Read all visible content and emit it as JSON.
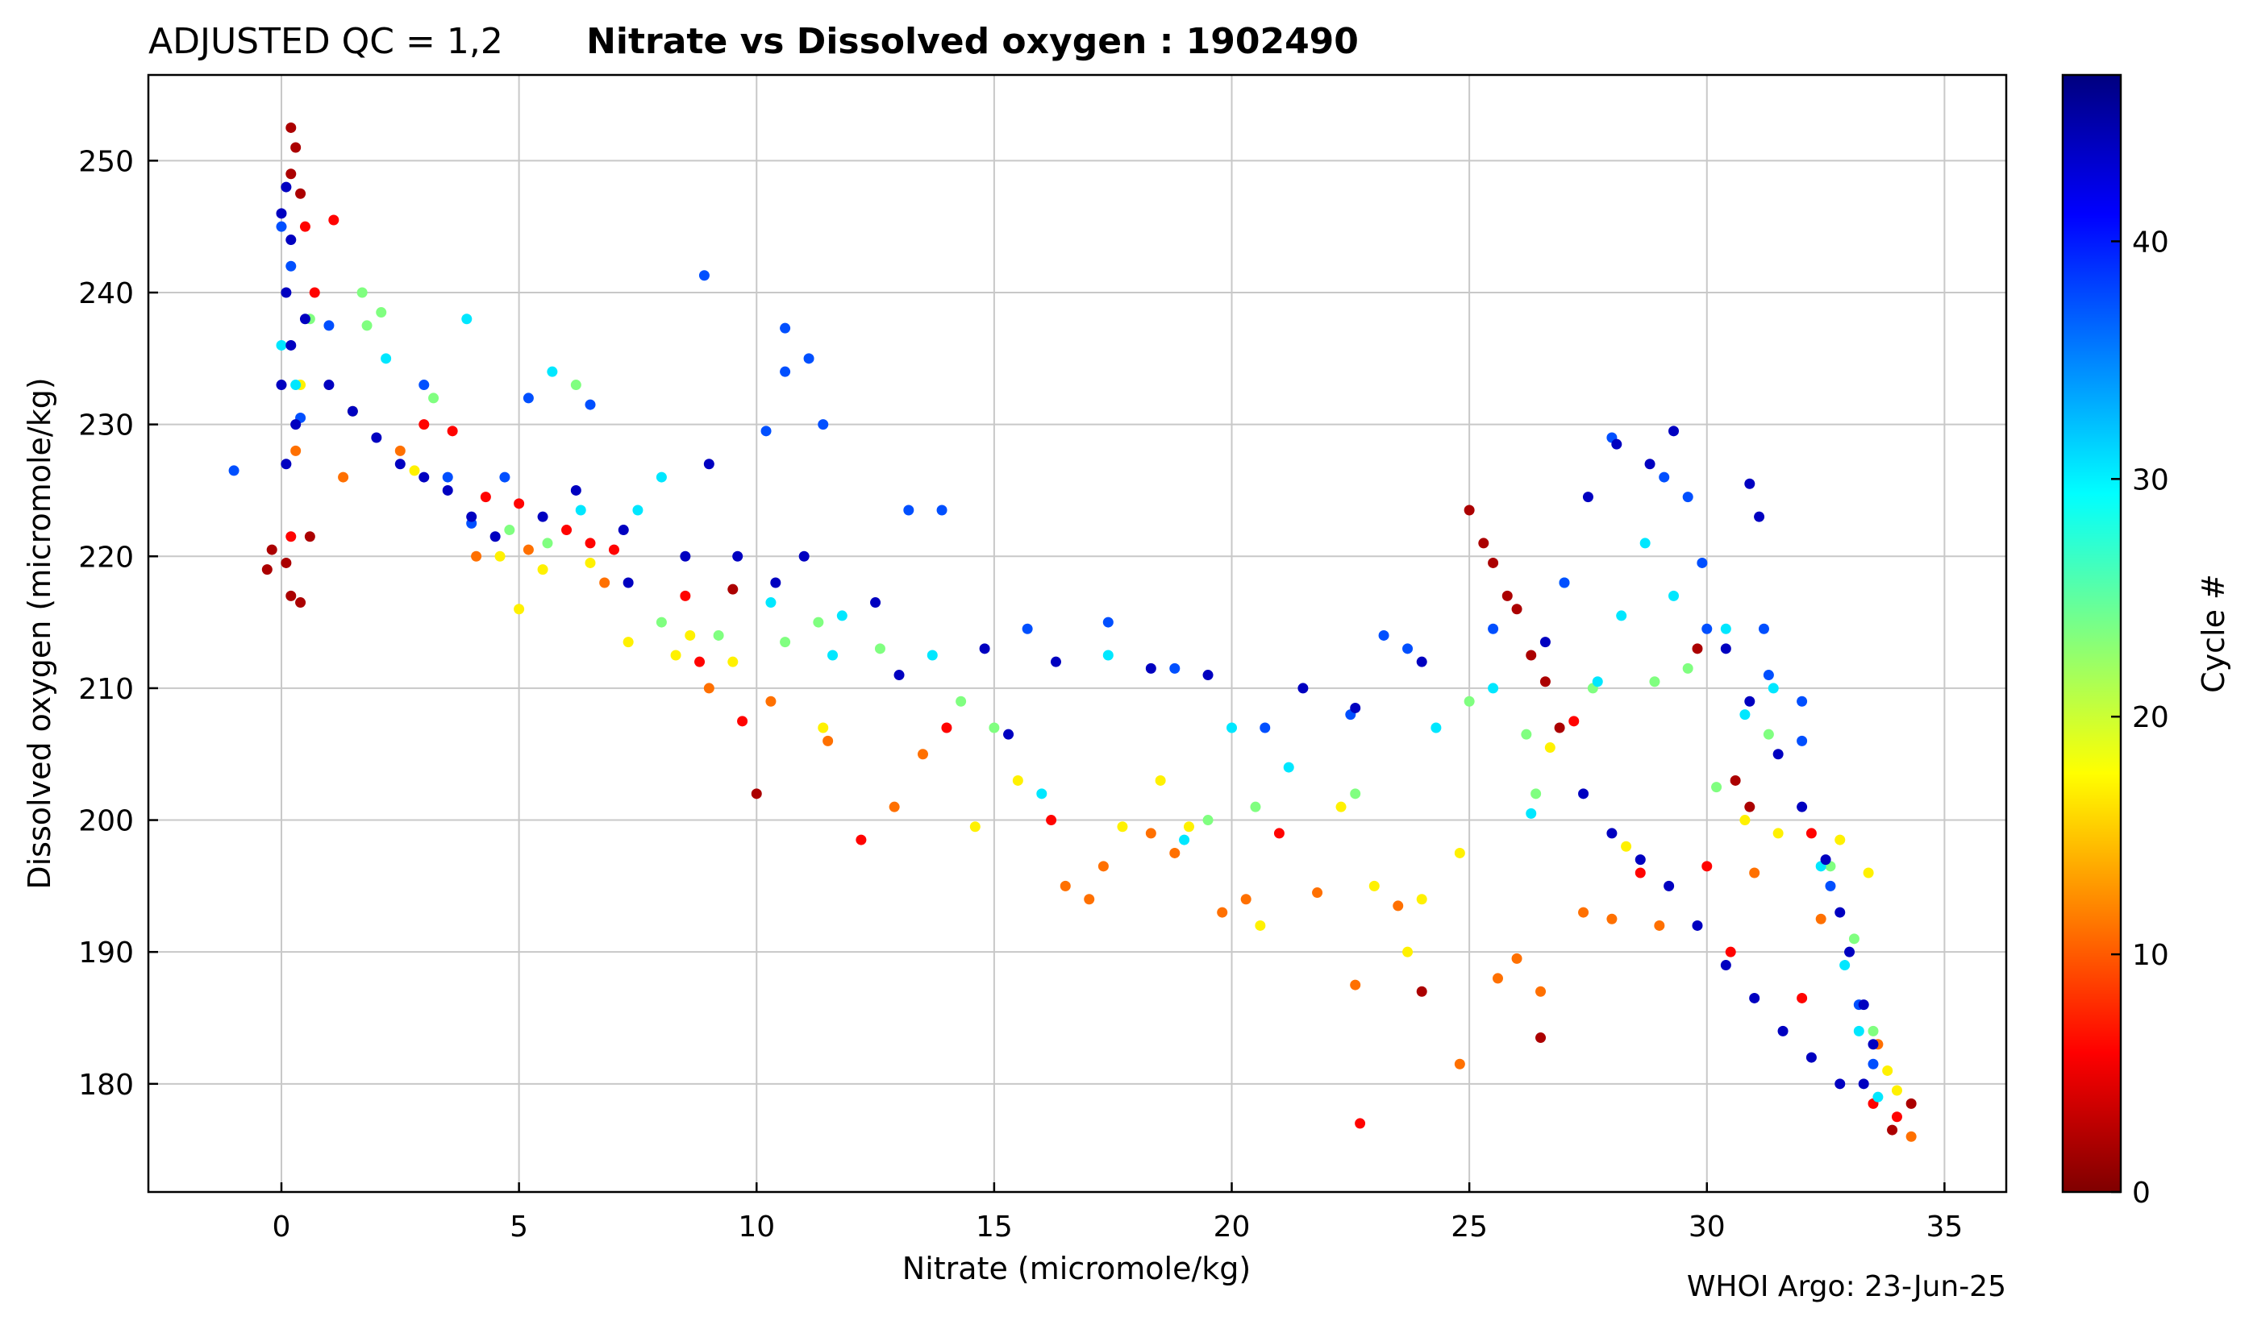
{
  "header": {
    "qc_label": "ADJUSTED QC = 1,2",
    "title": "Nitrate vs Dissolved oxygen : 1902490"
  },
  "footer": {
    "credit": "WHOI Argo: 23-Jun-25"
  },
  "colorbar": {
    "label": "Cycle #",
    "min": 0,
    "max": 47,
    "ticks": [
      0,
      10,
      20,
      30,
      40
    ],
    "colormap": "jet_r",
    "colors": [
      "#7f0000",
      "#ff0000",
      "#ff8000",
      "#ffff00",
      "#80ff80",
      "#00ffff",
      "#0080ff",
      "#0000ff",
      "#00007f"
    ]
  },
  "chart_data": {
    "type": "scatter",
    "xlabel": "Nitrate  (micromole/kg)",
    "ylabel": "Dissolved oxygen  (micromole/kg)",
    "xlim": [
      -2.8,
      36.3
    ],
    "ylim": [
      171.8,
      256.5
    ],
    "xticks": [
      0,
      5,
      10,
      15,
      20,
      25,
      30,
      35
    ],
    "yticks": [
      180,
      190,
      200,
      210,
      220,
      230,
      240,
      250
    ],
    "grid": true,
    "color_by": "Cycle #",
    "series": [
      {
        "cycle_range": [
          0,
          4
        ],
        "points": [
          [
            0.2,
            252.5
          ],
          [
            0.3,
            251.0
          ],
          [
            0.2,
            249.0
          ],
          [
            0.4,
            247.5
          ],
          [
            0.1,
            219.5
          ],
          [
            -0.3,
            219.0
          ],
          [
            0.2,
            217.0
          ],
          [
            0.4,
            216.5
          ],
          [
            -0.2,
            220.5
          ],
          [
            0.6,
            221.5
          ],
          [
            25.0,
            223.5
          ],
          [
            25.3,
            221.0
          ],
          [
            25.5,
            219.5
          ],
          [
            25.8,
            217.0
          ],
          [
            26.0,
            216.0
          ],
          [
            26.3,
            212.5
          ],
          [
            26.6,
            210.5
          ],
          [
            26.9,
            207.0
          ],
          [
            29.8,
            213.0
          ],
          [
            30.9,
            201.0
          ],
          [
            10.0,
            202.0
          ],
          [
            24.0,
            187.0
          ],
          [
            26.5,
            183.5
          ],
          [
            33.9,
            176.5
          ],
          [
            34.3,
            178.5
          ],
          [
            9.5,
            217.5
          ],
          [
            30.6,
            203.0
          ]
        ]
      },
      {
        "cycle_range": [
          4,
          8
        ],
        "points": [
          [
            0.5,
            245.0
          ],
          [
            1.1,
            245.5
          ],
          [
            0.7,
            240.0
          ],
          [
            3.0,
            230.0
          ],
          [
            3.6,
            229.5
          ],
          [
            4.3,
            224.5
          ],
          [
            5.0,
            224.0
          ],
          [
            6.0,
            222.0
          ],
          [
            6.5,
            221.0
          ],
          [
            7.0,
            220.5
          ],
          [
            8.5,
            217.0
          ],
          [
            12.2,
            198.5
          ],
          [
            22.7,
            177.0
          ],
          [
            30.5,
            190.0
          ],
          [
            32.0,
            186.5
          ],
          [
            33.5,
            178.5
          ],
          [
            34.0,
            177.5
          ],
          [
            0.2,
            221.5
          ],
          [
            8.8,
            212.0
          ],
          [
            9.7,
            207.5
          ],
          [
            14.0,
            207.0
          ],
          [
            16.2,
            200.0
          ],
          [
            21.0,
            199.0
          ],
          [
            27.2,
            207.5
          ],
          [
            28.6,
            196.0
          ],
          [
            30.0,
            196.5
          ],
          [
            32.2,
            199.0
          ]
        ]
      },
      {
        "cycle_range": [
          8,
          14
        ],
        "points": [
          [
            0.3,
            228.0
          ],
          [
            1.3,
            226.0
          ],
          [
            2.5,
            228.0
          ],
          [
            4.1,
            220.0
          ],
          [
            5.2,
            220.5
          ],
          [
            6.8,
            218.0
          ],
          [
            9.0,
            210.0
          ],
          [
            10.3,
            209.0
          ],
          [
            11.5,
            206.0
          ],
          [
            13.5,
            205.0
          ],
          [
            16.5,
            195.0
          ],
          [
            17.0,
            194.0
          ],
          [
            17.3,
            196.5
          ],
          [
            18.3,
            199.0
          ],
          [
            18.8,
            197.5
          ],
          [
            20.3,
            194.0
          ],
          [
            22.6,
            187.5
          ],
          [
            23.5,
            193.5
          ],
          [
            26.0,
            189.5
          ],
          [
            26.5,
            187.0
          ],
          [
            27.4,
            193.0
          ],
          [
            28.0,
            192.5
          ],
          [
            29.0,
            192.0
          ],
          [
            31.0,
            196.0
          ],
          [
            32.4,
            192.5
          ],
          [
            33.6,
            183.0
          ],
          [
            34.3,
            176.0
          ],
          [
            24.8,
            181.5
          ],
          [
            12.9,
            201.0
          ],
          [
            19.8,
            193.0
          ],
          [
            21.8,
            194.5
          ],
          [
            25.6,
            188.0
          ]
        ]
      },
      {
        "cycle_range": [
          14,
          20
        ],
        "points": [
          [
            0.4,
            233.0
          ],
          [
            1.5,
            231.0
          ],
          [
            2.8,
            226.5
          ],
          [
            4.6,
            220.0
          ],
          [
            5.5,
            219.0
          ],
          [
            6.5,
            219.5
          ],
          [
            7.3,
            213.5
          ],
          [
            8.3,
            212.5
          ],
          [
            8.6,
            214.0
          ],
          [
            9.5,
            212.0
          ],
          [
            11.4,
            207.0
          ],
          [
            14.6,
            199.5
          ],
          [
            15.5,
            203.0
          ],
          [
            18.5,
            203.0
          ],
          [
            19.1,
            199.5
          ],
          [
            20.6,
            192.0
          ],
          [
            22.3,
            201.0
          ],
          [
            23.0,
            195.0
          ],
          [
            24.0,
            194.0
          ],
          [
            24.8,
            197.5
          ],
          [
            26.7,
            205.5
          ],
          [
            28.3,
            198.0
          ],
          [
            30.8,
            200.0
          ],
          [
            31.5,
            199.0
          ],
          [
            32.8,
            198.5
          ],
          [
            33.4,
            196.0
          ],
          [
            34.0,
            179.5
          ],
          [
            33.8,
            181.0
          ],
          [
            5.0,
            216.0
          ],
          [
            17.7,
            199.5
          ],
          [
            23.7,
            190.0
          ]
        ]
      },
      {
        "cycle_range": [
          20,
          27
        ],
        "points": [
          [
            0.6,
            238.0
          ],
          [
            1.8,
            237.5
          ],
          [
            2.1,
            238.5
          ],
          [
            3.2,
            232.0
          ],
          [
            4.8,
            222.0
          ],
          [
            5.6,
            221.0
          ],
          [
            8.0,
            215.0
          ],
          [
            9.2,
            214.0
          ],
          [
            10.6,
            213.5
          ],
          [
            11.3,
            215.0
          ],
          [
            12.6,
            213.0
          ],
          [
            15.0,
            207.0
          ],
          [
            19.5,
            200.0
          ],
          [
            20.5,
            201.0
          ],
          [
            22.6,
            202.0
          ],
          [
            25.0,
            209.0
          ],
          [
            26.2,
            206.5
          ],
          [
            27.6,
            210.0
          ],
          [
            28.9,
            210.5
          ],
          [
            29.6,
            211.5
          ],
          [
            30.2,
            202.5
          ],
          [
            31.3,
            206.5
          ],
          [
            32.6,
            196.5
          ],
          [
            33.1,
            191.0
          ],
          [
            33.5,
            184.0
          ],
          [
            1.7,
            240.0
          ],
          [
            6.2,
            233.0
          ],
          [
            14.3,
            209.0
          ],
          [
            26.4,
            202.0
          ]
        ]
      },
      {
        "cycle_range": [
          27,
          34
        ],
        "points": [
          [
            0.0,
            236.0
          ],
          [
            0.3,
            233.0
          ],
          [
            2.2,
            235.0
          ],
          [
            3.9,
            238.0
          ],
          [
            5.7,
            234.0
          ],
          [
            7.5,
            223.5
          ],
          [
            8.0,
            226.0
          ],
          [
            10.3,
            216.5
          ],
          [
            11.8,
            215.5
          ],
          [
            13.7,
            212.5
          ],
          [
            16.0,
            202.0
          ],
          [
            17.4,
            212.5
          ],
          [
            19.0,
            198.5
          ],
          [
            21.2,
            204.0
          ],
          [
            24.3,
            207.0
          ],
          [
            25.5,
            210.0
          ],
          [
            26.3,
            200.5
          ],
          [
            27.0,
            218.0
          ],
          [
            28.2,
            215.5
          ],
          [
            28.7,
            221.0
          ],
          [
            29.3,
            217.0
          ],
          [
            30.4,
            214.5
          ],
          [
            30.8,
            208.0
          ],
          [
            31.4,
            210.0
          ],
          [
            32.4,
            196.5
          ],
          [
            32.9,
            189.0
          ],
          [
            33.2,
            184.0
          ],
          [
            33.6,
            179.0
          ],
          [
            6.3,
            223.5
          ],
          [
            11.6,
            212.5
          ],
          [
            20.0,
            207.0
          ],
          [
            27.7,
            210.5
          ]
        ]
      },
      {
        "cycle_range": [
          34,
          41
        ],
        "points": [
          [
            -1.0,
            226.5
          ],
          [
            0.0,
            245.0
          ],
          [
            0.2,
            242.0
          ],
          [
            0.4,
            230.5
          ],
          [
            1.0,
            237.5
          ],
          [
            3.0,
            233.0
          ],
          [
            3.5,
            226.0
          ],
          [
            4.0,
            222.5
          ],
          [
            4.7,
            226.0
          ],
          [
            5.2,
            232.0
          ],
          [
            6.5,
            231.5
          ],
          [
            8.9,
            241.3
          ],
          [
            10.2,
            229.5
          ],
          [
            10.6,
            237.3
          ],
          [
            11.4,
            230.0
          ],
          [
            13.2,
            223.5
          ],
          [
            13.9,
            223.5
          ],
          [
            17.4,
            215.0
          ],
          [
            18.8,
            211.5
          ],
          [
            20.7,
            207.0
          ],
          [
            22.5,
            208.0
          ],
          [
            23.2,
            214.0
          ],
          [
            25.5,
            214.5
          ],
          [
            27.0,
            218.0
          ],
          [
            28.0,
            229.0
          ],
          [
            29.1,
            226.0
          ],
          [
            29.6,
            224.5
          ],
          [
            29.9,
            219.5
          ],
          [
            30.0,
            214.5
          ],
          [
            31.3,
            211.0
          ],
          [
            32.0,
            206.0
          ],
          [
            32.6,
            195.0
          ],
          [
            33.2,
            186.0
          ],
          [
            33.5,
            181.5
          ],
          [
            10.6,
            234.0
          ],
          [
            11.1,
            235.0
          ],
          [
            15.7,
            214.5
          ],
          [
            23.7,
            213.0
          ],
          [
            31.2,
            214.5
          ],
          [
            32.0,
            209.0
          ]
        ]
      },
      {
        "cycle_range": [
          41,
          47
        ],
        "points": [
          [
            0.1,
            248.0
          ],
          [
            0.0,
            246.0
          ],
          [
            0.2,
            244.0
          ],
          [
            0.1,
            240.0
          ],
          [
            0.2,
            236.0
          ],
          [
            0.0,
            233.0
          ],
          [
            0.3,
            230.0
          ],
          [
            0.1,
            227.0
          ],
          [
            0.5,
            238.0
          ],
          [
            1.0,
            233.0
          ],
          [
            1.5,
            231.0
          ],
          [
            2.0,
            229.0
          ],
          [
            2.5,
            227.0
          ],
          [
            3.0,
            226.0
          ],
          [
            3.5,
            225.0
          ],
          [
            4.0,
            223.0
          ],
          [
            4.5,
            221.5
          ],
          [
            5.5,
            223.0
          ],
          [
            6.2,
            225.0
          ],
          [
            7.2,
            222.0
          ],
          [
            8.5,
            220.0
          ],
          [
            9.6,
            220.0
          ],
          [
            10.4,
            218.0
          ],
          [
            11.0,
            220.0
          ],
          [
            12.5,
            216.5
          ],
          [
            14.8,
            213.0
          ],
          [
            16.3,
            212.0
          ],
          [
            18.3,
            211.5
          ],
          [
            19.5,
            211.0
          ],
          [
            21.5,
            210.0
          ],
          [
            22.6,
            208.5
          ],
          [
            24.0,
            212.0
          ],
          [
            27.4,
            202.0
          ],
          [
            28.0,
            199.0
          ],
          [
            28.6,
            197.0
          ],
          [
            29.2,
            195.0
          ],
          [
            29.8,
            192.0
          ],
          [
            30.4,
            189.0
          ],
          [
            31.0,
            186.5
          ],
          [
            31.6,
            184.0
          ],
          [
            32.2,
            182.0
          ],
          [
            32.8,
            180.0
          ],
          [
            33.3,
            180.0
          ],
          [
            33.5,
            183.0
          ],
          [
            33.3,
            186.0
          ],
          [
            33.0,
            190.0
          ],
          [
            32.8,
            193.0
          ],
          [
            32.5,
            197.0
          ],
          [
            32.0,
            201.0
          ],
          [
            31.5,
            205.0
          ],
          [
            30.9,
            209.0
          ],
          [
            30.4,
            213.0
          ],
          [
            27.5,
            224.5
          ],
          [
            28.1,
            228.5
          ],
          [
            29.3,
            229.5
          ],
          [
            30.9,
            225.5
          ],
          [
            31.1,
            223.0
          ],
          [
            28.8,
            227.0
          ],
          [
            9.0,
            227.0
          ],
          [
            7.3,
            218.0
          ],
          [
            13.0,
            211.0
          ],
          [
            15.3,
            206.5
          ],
          [
            26.6,
            213.5
          ]
        ]
      }
    ]
  }
}
